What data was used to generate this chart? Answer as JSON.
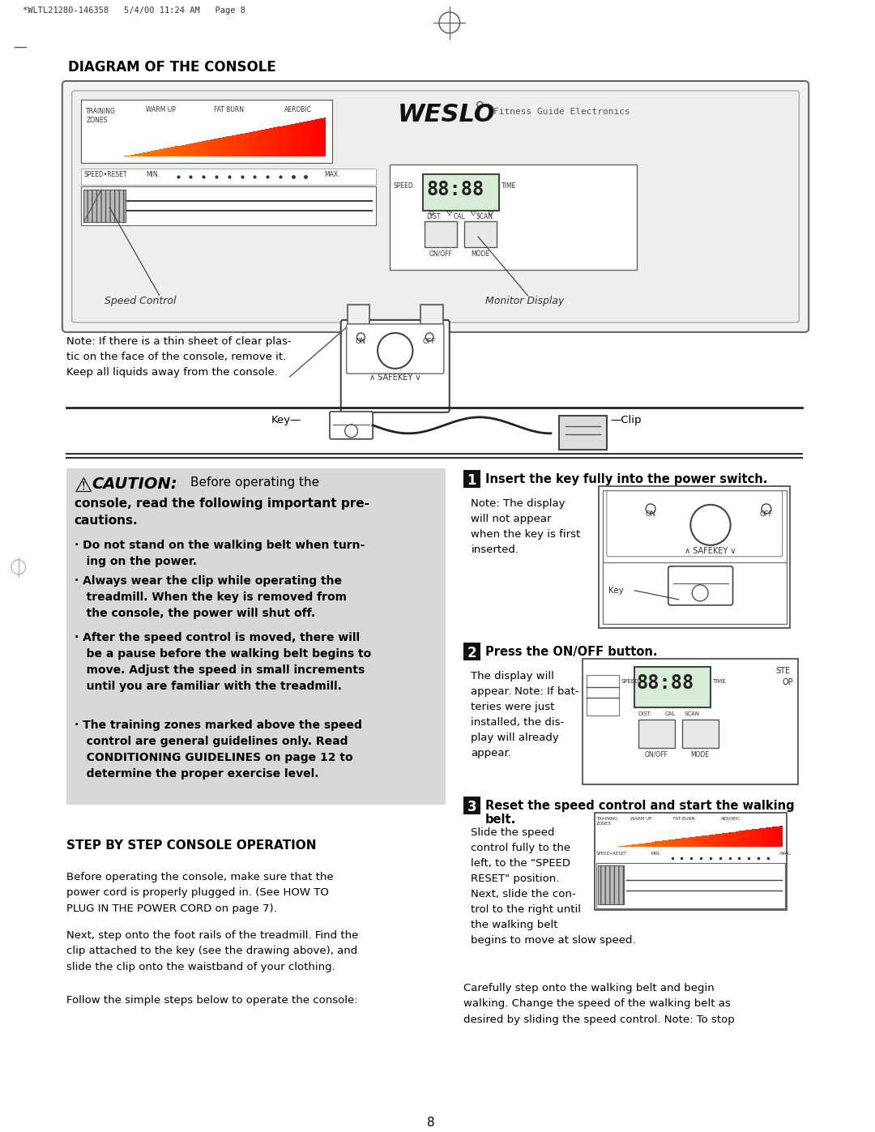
{
  "page_header": "*WLTL21280-146358   5/4/00 11:24 AM   Page 8",
  "section1_title": "DIAGRAM OF THE CONSOLE",
  "weslo_text": "WESLO",
  "fitness_guide": "Fitness Guide Electronics",
  "note_text": "Note: If there is a thin sheet of clear plas-\ntic on the face of the console, remove it.\nKeep all liquids away from the console.",
  "step1_title": "Insert the key fully into the power switch.",
  "step1_note": "Note: The display\nwill not appear\nwhen the key is first\ninserted.",
  "step2_title": "Press the ON/OFF button.",
  "step2_note": "The display will\nappear. Note: If bat-\nteries were just\ninstalled, the dis-\nplay will already\nappear.",
  "step3_title": "Reset the speed control and start the walking\nbelt.",
  "step3_note": "Slide the speed\ncontrol fully to the\nleft, to the \"SPEED\nRESET\" position.\nNext, slide the con-\ntrol to the right until\nthe walking belt\nbegins to move at slow speed.",
  "step_by_step_title": "STEP BY STEP CONSOLE OPERATION",
  "step_by_step_para1": "Before operating the console, make sure that the\npower cord is properly plugged in. (See HOW TO\nPLUG IN THE POWER CORD on page 7).",
  "step_by_step_para2": "Next, step onto the foot rails of the treadmill. Find the\nclip attached to the key (see the drawing above), and\nslide the clip onto the waistband of your clothing.",
  "step_by_step_para3": "Follow the simple steps below to operate the console:",
  "final_para": "Carefully step onto the walking belt and begin\nwalking. Change the speed of the walking belt as\ndesired by sliding the speed control. Note: To stop",
  "page_number": "8",
  "bg_color": "#ffffff",
  "text_color": "#000000",
  "caution_bg": "#d8d8d8",
  "caution_bullets_bold": [
    "· Do not stand on the walking belt when turn-\n   ing on the power.",
    "· Always wear the clip while operating the\n   treadmill. When the key is removed from\n   the console, the power will shut off.",
    "· After the speed control is moved, there will\n   be a pause before the walking belt begins to\n   move. Adjust the speed in small increments\n   until you are familiar with the treadmill.",
    "· The training zones marked above the speed\n   control are general guidelines only. Read\n   CONDITIONING GUIDELINES on page 12 to\n   determine the proper exercise level."
  ]
}
